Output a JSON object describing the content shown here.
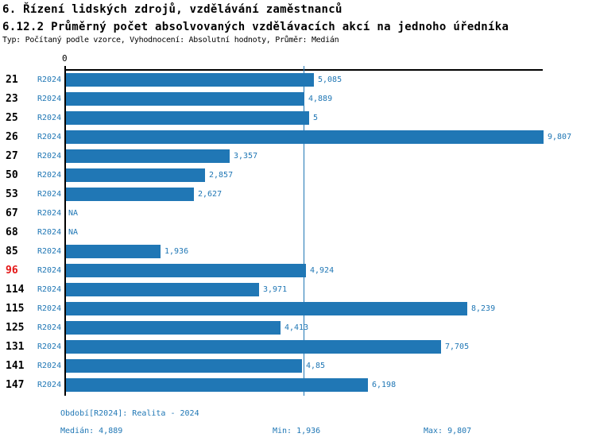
{
  "header": {
    "title": "6. Řízení lidských zdrojů, vzdělávání zaměstnanců",
    "subtitle": "6.12.2 Průměrný počet absolvovaných vzdělávacích akcí na jednoho úředníka",
    "meta": "Typ: Počítaný podle vzorce, Vyhodnocení: Absolutní hodnoty, Průměr: Medián"
  },
  "colors": {
    "bar_blue": "#2077b5",
    "text_blue": "#2077b5",
    "highlight_red": "#e41414",
    "axis_black": "#000000"
  },
  "chart_data": {
    "type": "bar",
    "orientation": "horizontal",
    "axis_origin_label": "0",
    "xlim": [
      0,
      9.807
    ],
    "median_value": 4.889,
    "series_label": "R2024",
    "rows": [
      {
        "code": "21",
        "period": "R2024",
        "value": 5.085,
        "label": "5,085",
        "highlight": false
      },
      {
        "code": "23",
        "period": "R2024",
        "value": 4.889,
        "label": "4,889",
        "highlight": false
      },
      {
        "code": "25",
        "period": "R2024",
        "value": 5,
        "label": "5",
        "highlight": false
      },
      {
        "code": "26",
        "period": "R2024",
        "value": 9.807,
        "label": "9,807",
        "highlight": false
      },
      {
        "code": "27",
        "period": "R2024",
        "value": 3.357,
        "label": "3,357",
        "highlight": false
      },
      {
        "code": "50",
        "period": "R2024",
        "value": 2.857,
        "label": "2,857",
        "highlight": false
      },
      {
        "code": "53",
        "period": "R2024",
        "value": 2.627,
        "label": "2,627",
        "highlight": false
      },
      {
        "code": "67",
        "period": "R2024",
        "value": null,
        "label": "NA",
        "highlight": false
      },
      {
        "code": "68",
        "period": "R2024",
        "value": null,
        "label": "NA",
        "highlight": false
      },
      {
        "code": "85",
        "period": "R2024",
        "value": 1.936,
        "label": "1,936",
        "highlight": false
      },
      {
        "code": "96",
        "period": "R2024",
        "value": 4.924,
        "label": "4,924",
        "highlight": true
      },
      {
        "code": "114",
        "period": "R2024",
        "value": 3.971,
        "label": "3,971",
        "highlight": false
      },
      {
        "code": "115",
        "period": "R2024",
        "value": 8.239,
        "label": "8,239",
        "highlight": false
      },
      {
        "code": "125",
        "period": "R2024",
        "value": 4.413,
        "label": "4,413",
        "highlight": false
      },
      {
        "code": "131",
        "period": "R2024",
        "value": 7.705,
        "label": "7,705",
        "highlight": false
      },
      {
        "code": "141",
        "period": "R2024",
        "value": 4.85,
        "label": "4,85",
        "highlight": false
      },
      {
        "code": "147",
        "period": "R2024",
        "value": 6.198,
        "label": "6,198",
        "highlight": false
      }
    ]
  },
  "footer": {
    "period_line": "Období[R2024]: Realita - 2024",
    "median": "Medián: 4,889",
    "min": "Min: 1,936",
    "max": "Max: 9,807"
  }
}
